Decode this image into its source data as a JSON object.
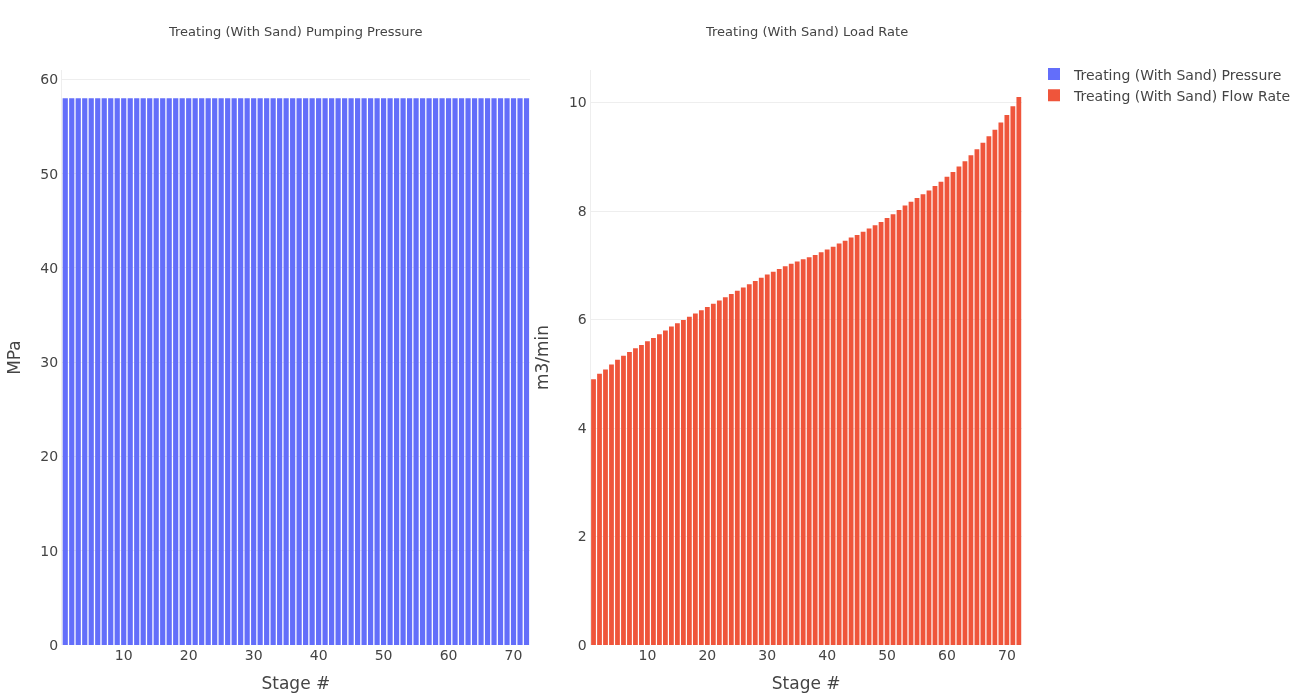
{
  "chart_data": [
    {
      "type": "bar",
      "title": "Treating (With Sand) Pumping Pressure",
      "xlabel": "Stage #",
      "ylabel": "MPa",
      "x": [
        1,
        2,
        3,
        4,
        5,
        6,
        7,
        8,
        9,
        10,
        11,
        12,
        13,
        14,
        15,
        16,
        17,
        18,
        19,
        20,
        21,
        22,
        23,
        24,
        25,
        26,
        27,
        28,
        29,
        30,
        31,
        32,
        33,
        34,
        35,
        36,
        37,
        38,
        39,
        40,
        41,
        42,
        43,
        44,
        45,
        46,
        47,
        48,
        49,
        50,
        51,
        52,
        53,
        54,
        55,
        56,
        57,
        58,
        59,
        60,
        61,
        62,
        63,
        64,
        65,
        66,
        67,
        68,
        69,
        70,
        71,
        72
      ],
      "xlim": [
        0.5,
        72.5
      ],
      "xticks": [
        10,
        20,
        30,
        40,
        50,
        60,
        70
      ],
      "ylim": [
        0,
        61
      ],
      "yticks": [
        0,
        10,
        20,
        30,
        40,
        50,
        60
      ],
      "grid": "y",
      "legend": "top right",
      "series": [
        {
          "name": "Treating (With Sand) Pressure",
          "color": "#636efa",
          "values": [
            58,
            58,
            58,
            58,
            58,
            58,
            58,
            58,
            58,
            58,
            58,
            58,
            58,
            58,
            58,
            58,
            58,
            58,
            58,
            58,
            58,
            58,
            58,
            58,
            58,
            58,
            58,
            58,
            58,
            58,
            58,
            58,
            58,
            58,
            58,
            58,
            58,
            58,
            58,
            58,
            58,
            58,
            58,
            58,
            58,
            58,
            58,
            58,
            58,
            58,
            58,
            58,
            58,
            58,
            58,
            58,
            58,
            58,
            58,
            58,
            58,
            58,
            58,
            58,
            58,
            58,
            58,
            58,
            58,
            58,
            58,
            58
          ]
        }
      ]
    },
    {
      "type": "bar",
      "title": "Treating (With Sand) Load Rate",
      "xlabel": "Stage #",
      "ylabel": "m3/min",
      "x": [
        1,
        2,
        3,
        4,
        5,
        6,
        7,
        8,
        9,
        10,
        11,
        12,
        13,
        14,
        15,
        16,
        17,
        18,
        19,
        20,
        21,
        22,
        23,
        24,
        25,
        26,
        27,
        28,
        29,
        30,
        31,
        32,
        33,
        34,
        35,
        36,
        37,
        38,
        39,
        40,
        41,
        42,
        43,
        44,
        45,
        46,
        47,
        48,
        49,
        50,
        51,
        52,
        53,
        54,
        55,
        56,
        57,
        58,
        59,
        60,
        61,
        62,
        63,
        64,
        65,
        66,
        67,
        68,
        69,
        70,
        71,
        72
      ],
      "xlim": [
        0.5,
        72.5
      ],
      "xticks": [
        10,
        20,
        30,
        40,
        50,
        60,
        70
      ],
      "ylim": [
        0,
        10.6
      ],
      "yticks": [
        0,
        2,
        4,
        6,
        8,
        10
      ],
      "grid": "y",
      "legend": "top right",
      "series": [
        {
          "name": "Treating (With Sand) Flow Rate",
          "color": "#ef553b",
          "values": [
            4.9,
            5.0,
            5.08,
            5.17,
            5.26,
            5.33,
            5.4,
            5.47,
            5.53,
            5.6,
            5.66,
            5.73,
            5.8,
            5.87,
            5.93,
            5.99,
            6.05,
            6.11,
            6.17,
            6.23,
            6.29,
            6.35,
            6.41,
            6.47,
            6.53,
            6.59,
            6.65,
            6.71,
            6.77,
            6.83,
            6.88,
            6.93,
            6.98,
            7.03,
            7.07,
            7.11,
            7.15,
            7.19,
            7.24,
            7.29,
            7.34,
            7.4,
            7.45,
            7.51,
            7.56,
            7.62,
            7.68,
            7.74,
            7.8,
            7.87,
            7.94,
            8.02,
            8.1,
            8.17,
            8.24,
            8.31,
            8.38,
            8.46,
            8.54,
            8.63,
            8.72,
            8.82,
            8.92,
            9.03,
            9.14,
            9.26,
            9.38,
            9.5,
            9.63,
            9.77,
            9.93,
            10.1
          ]
        }
      ]
    }
  ]
}
